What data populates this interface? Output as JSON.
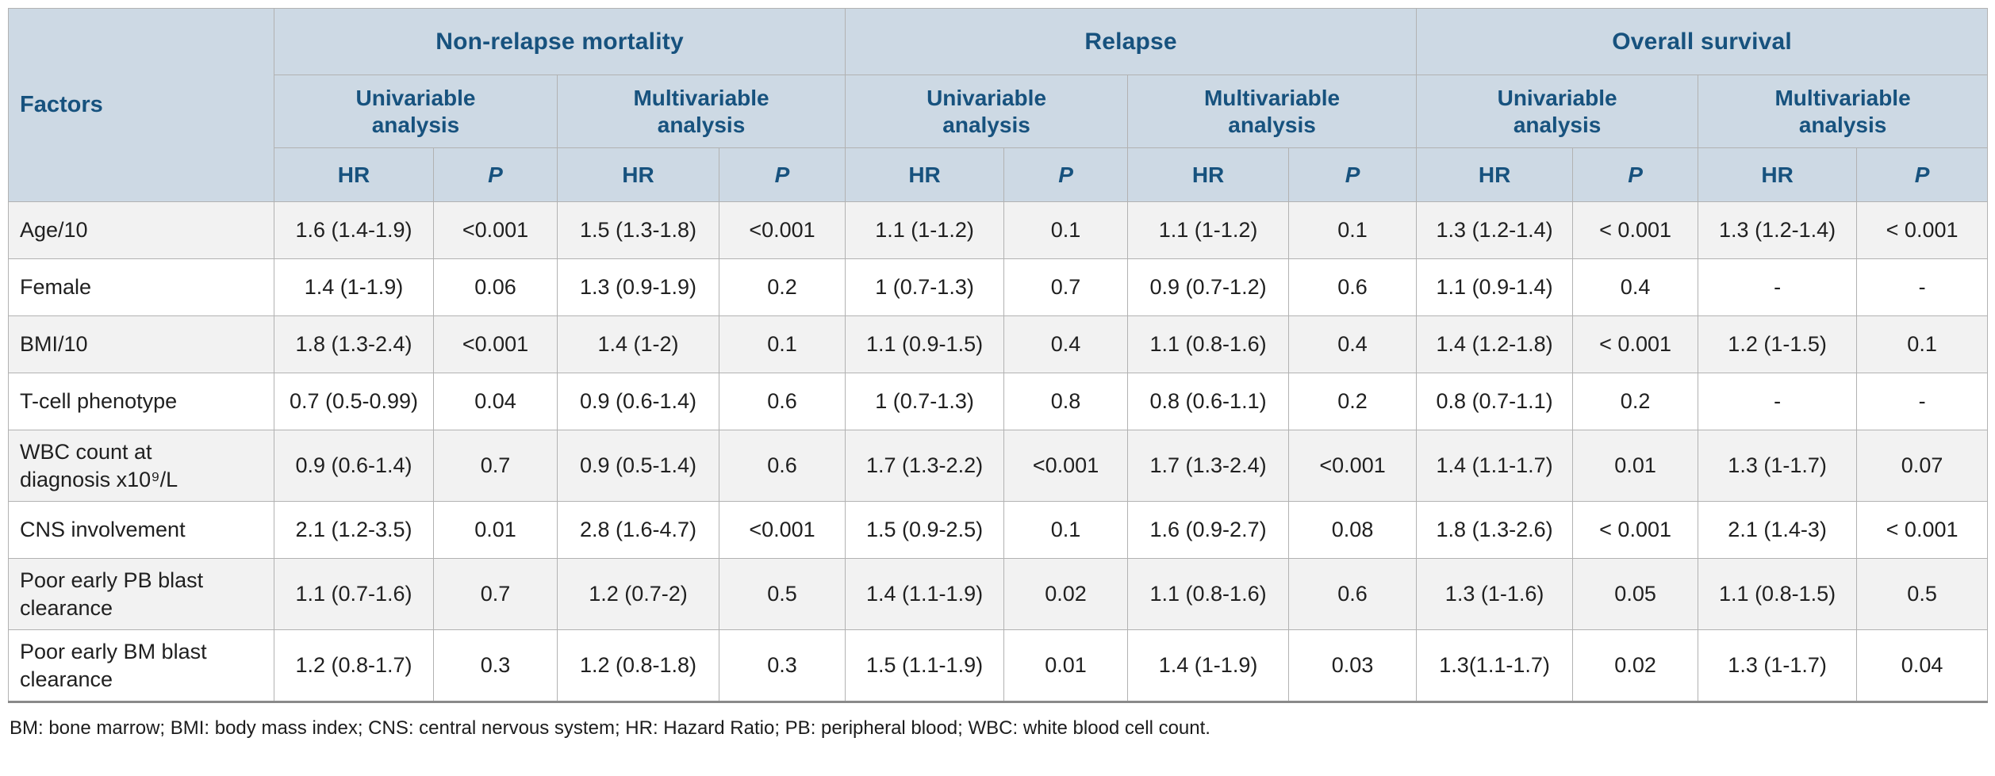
{
  "colors": {
    "header_bg": "#cdd9e4",
    "header_text": "#17527e",
    "row_alt_bg": "#f2f2f2",
    "row_bg": "#ffffff",
    "border": "#b2b2b2",
    "outer_border": "#9e9e9e",
    "bottom_border": "#8a8a8a",
    "body_text": "#202020"
  },
  "chart_data": {
    "type": "table",
    "factors_label": "Factors",
    "outcome_groups": [
      "Non-relapse mortality",
      "Relapse",
      "Overall survival"
    ],
    "analysis_labels": [
      "Univariable\nanalysis",
      "Multivariable\nanalysis"
    ],
    "hr_label": "HR",
    "p_label": "P",
    "column_keys": [
      "nrm-uni-hr",
      "nrm-uni-p",
      "nrm-multi-hr",
      "nrm-multi-p",
      "relapse-uni-hr",
      "relapse-uni-p",
      "relapse-multi-hr",
      "relapse-multi-p",
      "os-uni-hr",
      "os-uni-p",
      "os-multi-hr",
      "os-multi-p"
    ],
    "rows": [
      {
        "factor": "Age/10",
        "values": [
          "1.6 (1.4-1.9)",
          "<0.001",
          "1.5 (1.3-1.8)",
          "<0.001",
          "1.1 (1-1.2)",
          "0.1",
          "1.1 (1-1.2)",
          "0.1",
          "1.3 (1.2-1.4)",
          "< 0.001",
          "1.3 (1.2-1.4)",
          "< 0.001"
        ]
      },
      {
        "factor": "Female",
        "values": [
          "1.4 (1-1.9)",
          "0.06",
          "1.3 (0.9-1.9)",
          "0.2",
          "1 (0.7-1.3)",
          "0.7",
          "0.9 (0.7-1.2)",
          "0.6",
          "1.1 (0.9-1.4)",
          "0.4",
          "-",
          "-"
        ]
      },
      {
        "factor": "BMI/10",
        "values": [
          "1.8 (1.3-2.4)",
          "<0.001",
          "1.4 (1-2)",
          "0.1",
          "1.1 (0.9-1.5)",
          "0.4",
          "1.1 (0.8-1.6)",
          "0.4",
          "1.4 (1.2-1.8)",
          "< 0.001",
          "1.2 (1-1.5)",
          "0.1"
        ]
      },
      {
        "factor": "T-cell phenotype",
        "values": [
          "0.7 (0.5-0.99)",
          "0.04",
          "0.9 (0.6-1.4)",
          "0.6",
          "1 (0.7-1.3)",
          "0.8",
          "0.8 (0.6-1.1)",
          "0.2",
          "0.8 (0.7-1.1)",
          "0.2",
          "-",
          "-"
        ]
      },
      {
        "factor": "WBC count at\ndiagnosis x10⁹/L",
        "values": [
          "0.9 (0.6-1.4)",
          "0.7",
          "0.9 (0.5-1.4)",
          "0.6",
          "1.7 (1.3-2.2)",
          "<0.001",
          "1.7 (1.3-2.4)",
          "<0.001",
          "1.4 (1.1-1.7)",
          "0.01",
          "1.3 (1-1.7)",
          "0.07"
        ]
      },
      {
        "factor": "CNS involvement",
        "values": [
          "2.1 (1.2-3.5)",
          "0.01",
          "2.8 (1.6-4.7)",
          "<0.001",
          "1.5 (0.9-2.5)",
          "0.1",
          "1.6 (0.9-2.7)",
          "0.08",
          "1.8 (1.3-2.6)",
          "< 0.001",
          "2.1 (1.4-3)",
          "< 0.001"
        ]
      },
      {
        "factor": "Poor early PB blast\nclearance",
        "values": [
          "1.1 (0.7-1.6)",
          "0.7",
          "1.2 (0.7-2)",
          "0.5",
          "1.4 (1.1-1.9)",
          "0.02",
          "1.1 (0.8-1.6)",
          "0.6",
          "1.3 (1-1.6)",
          "0.05",
          "1.1 (0.8-1.5)",
          "0.5"
        ]
      },
      {
        "factor": "Poor early BM blast\nclearance",
        "values": [
          "1.2 (0.8-1.7)",
          "0.3",
          "1.2 (0.8-1.8)",
          "0.3",
          "1.5 (1.1-1.9)",
          "0.01",
          "1.4 (1-1.9)",
          "0.03",
          "1.3(1.1-1.7)",
          "0.02",
          "1.3 (1-1.7)",
          "0.04"
        ]
      }
    ]
  },
  "footnote": "BM: bone marrow; BMI: body mass index; CNS: central nervous system; HR: Hazard Ratio; PB: peripheral blood; WBC: white blood cell count."
}
